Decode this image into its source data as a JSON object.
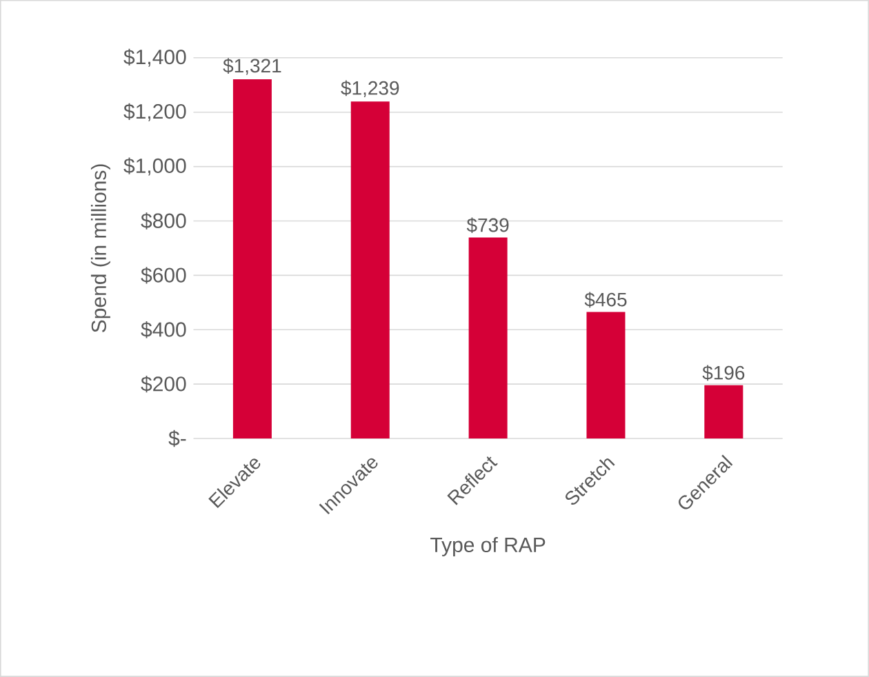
{
  "chart_data": {
    "type": "bar",
    "categories": [
      "Elevate",
      "Innovate",
      "Reflect",
      "Stretch",
      "General"
    ],
    "values": [
      1321,
      1239,
      739,
      465,
      196
    ],
    "value_labels": [
      "$1,321",
      "$1,239",
      "$739",
      "$465",
      "$196"
    ],
    "color": "#d50037",
    "xlabel": "Type of RAP",
    "ylabel": "Spend (in millions)",
    "ylim": [
      0,
      1400
    ],
    "yticks": [
      {
        "value": 0,
        "label": "$-"
      },
      {
        "value": 200,
        "label": "$200"
      },
      {
        "value": 400,
        "label": "$400"
      },
      {
        "value": 600,
        "label": "$600"
      },
      {
        "value": 800,
        "label": "$800"
      },
      {
        "value": 1000,
        "label": "$1,000"
      },
      {
        "value": 1200,
        "label": "$1,200"
      },
      {
        "value": 1400,
        "label": "$1,400"
      }
    ],
    "grid": "y"
  }
}
